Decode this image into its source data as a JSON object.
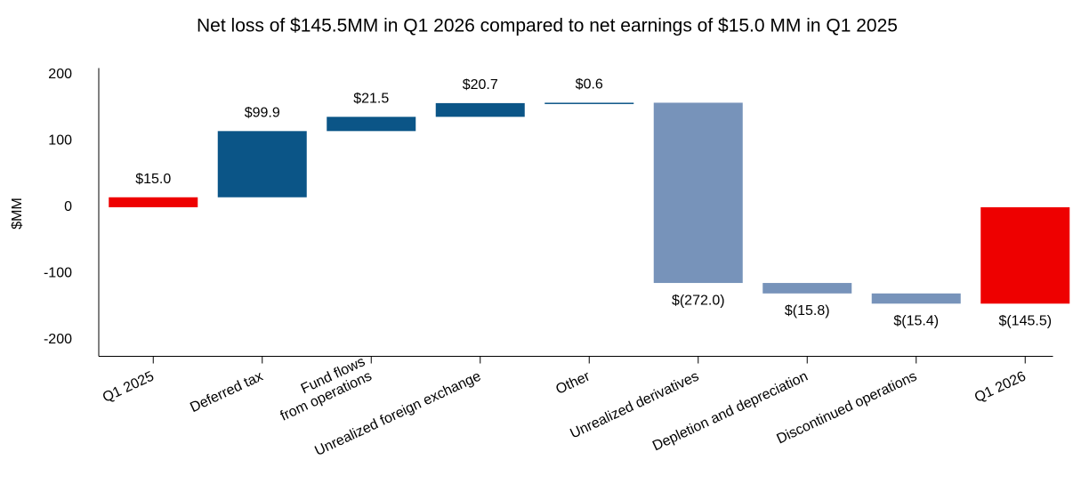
{
  "chart_data": {
    "type": "waterfall",
    "title": "Net loss of $145.5MM in Q1 2026 compared to net earnings of $15.0 MM in Q1 2025",
    "y_label": "$MM",
    "categories": [
      "Q1 2025",
      "Deferred tax",
      "Fund flows\nfrom operations",
      "Unrealized foreign exchange",
      "Other",
      "Unrealized derivatives",
      "Depletion and depreciation",
      "Discontinued operations",
      "Q1 2026"
    ],
    "values": [
      15.0,
      99.9,
      21.5,
      20.7,
      0.6,
      -272.0,
      -15.8,
      -15.4,
      -145.5
    ],
    "value_labels": [
      "$15.0",
      "$99.9",
      "$21.5",
      "$20.7",
      "$0.6",
      "$(272.0)",
      "$(15.8)",
      "$(15.4)",
      "$(145.5)"
    ],
    "measures": [
      "total",
      "relative",
      "relative",
      "relative",
      "relative",
      "relative",
      "relative",
      "relative",
      "total"
    ],
    "colors": {
      "total": "#ee0000",
      "increase": "#0b5587",
      "decrease": "#7793ba"
    },
    "ylim": [
      -225,
      210
    ],
    "yticks": [
      -200,
      -100,
      0,
      100,
      200
    ]
  }
}
